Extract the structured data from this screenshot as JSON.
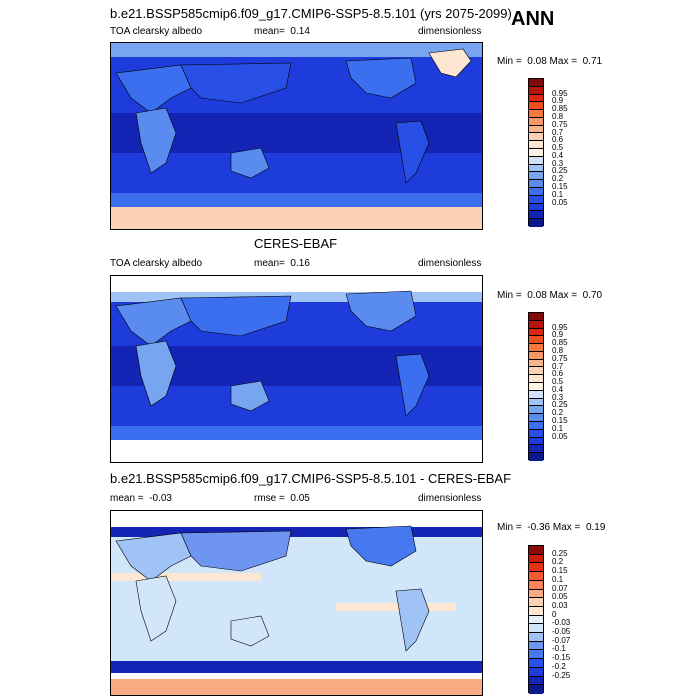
{
  "header": {
    "title": "b.e21.BSSP585cmip6.f09_g17.CMIP6-SSP5-8.5.101 (yrs 2075-2099)",
    "season": "ANN"
  },
  "colors": {
    "abs_scale": [
      "#0a1a8c",
      "#1424b4",
      "#1e3cdc",
      "#2850e6",
      "#3c6ef0",
      "#5a8cf0",
      "#78a5f0",
      "#a0c3f5",
      "#d2e1fa",
      "#fff5e6",
      "#fde6d2",
      "#fcd2b4",
      "#f9b48c",
      "#f89664",
      "#f5783c",
      "#f0501e",
      "#dc2814",
      "#b4140a",
      "#820a0a"
    ],
    "diff_scale": [
      "#0a1a8c",
      "#1424b4",
      "#1e3cdc",
      "#2850e6",
      "#4678f0",
      "#6e96f0",
      "#a0c3f5",
      "#d2e6fa",
      "#e6f0fa",
      "#fde6d2",
      "#fcd2b4",
      "#f9aa82",
      "#f8825a",
      "#f55a32",
      "#e63214",
      "#c81e0a",
      "#8c0a0a"
    ]
  },
  "chart_data": [
    {
      "type": "heatmap",
      "title": "b.e21.BSSP585cmip6.f09_g17.CMIP6-SSP5-8.5.101 (yrs 2075-2099)",
      "field": "TOA clearsky albedo",
      "units": "dimensionless",
      "mean_label": "mean=",
      "mean": "0.14",
      "min_label": "Min =",
      "min": "0.08",
      "max_label": "Max =",
      "max": "0.71",
      "levels": [
        "0.05",
        "0.1",
        "0.15",
        "0.2",
        "0.25",
        "0.3",
        "0.4",
        "0.5",
        "0.6",
        "0.7",
        "0.75",
        "0.8",
        "0.85",
        "0.9",
        "0.95"
      ]
    },
    {
      "type": "heatmap",
      "title": "CERES-EBAF",
      "field": "TOA clearsky albedo",
      "units": "dimensionless",
      "mean_label": "mean=",
      "mean": "0.16",
      "min_label": "Min =",
      "min": "0.08",
      "max_label": "Max =",
      "max": "0.70",
      "levels": [
        "0.05",
        "0.1",
        "0.15",
        "0.2",
        "0.25",
        "0.3",
        "0.4",
        "0.5",
        "0.6",
        "0.7",
        "0.75",
        "0.8",
        "0.85",
        "0.9",
        "0.95"
      ]
    },
    {
      "type": "heatmap",
      "title": "b.e21.BSSP585cmip6.f09_g17.CMIP6-SSP5-8.5.101 - CERES-EBAF",
      "units": "dimensionless",
      "mean_label": "mean =",
      "mean": "-0.03",
      "rmse_label": "rmse =",
      "rmse": "0.05",
      "min_label": "Min =",
      "min": "-0.36",
      "max_label": "Max =",
      "max": "0.19",
      "levels": [
        "-0.25",
        "-0.2",
        "-0.15",
        "-0.1",
        "-0.07",
        "-0.05",
        "-0.03",
        "0",
        "0.03",
        "0.05",
        "0.07",
        "0.1",
        "0.15",
        "0.2",
        "0.25"
      ]
    }
  ]
}
